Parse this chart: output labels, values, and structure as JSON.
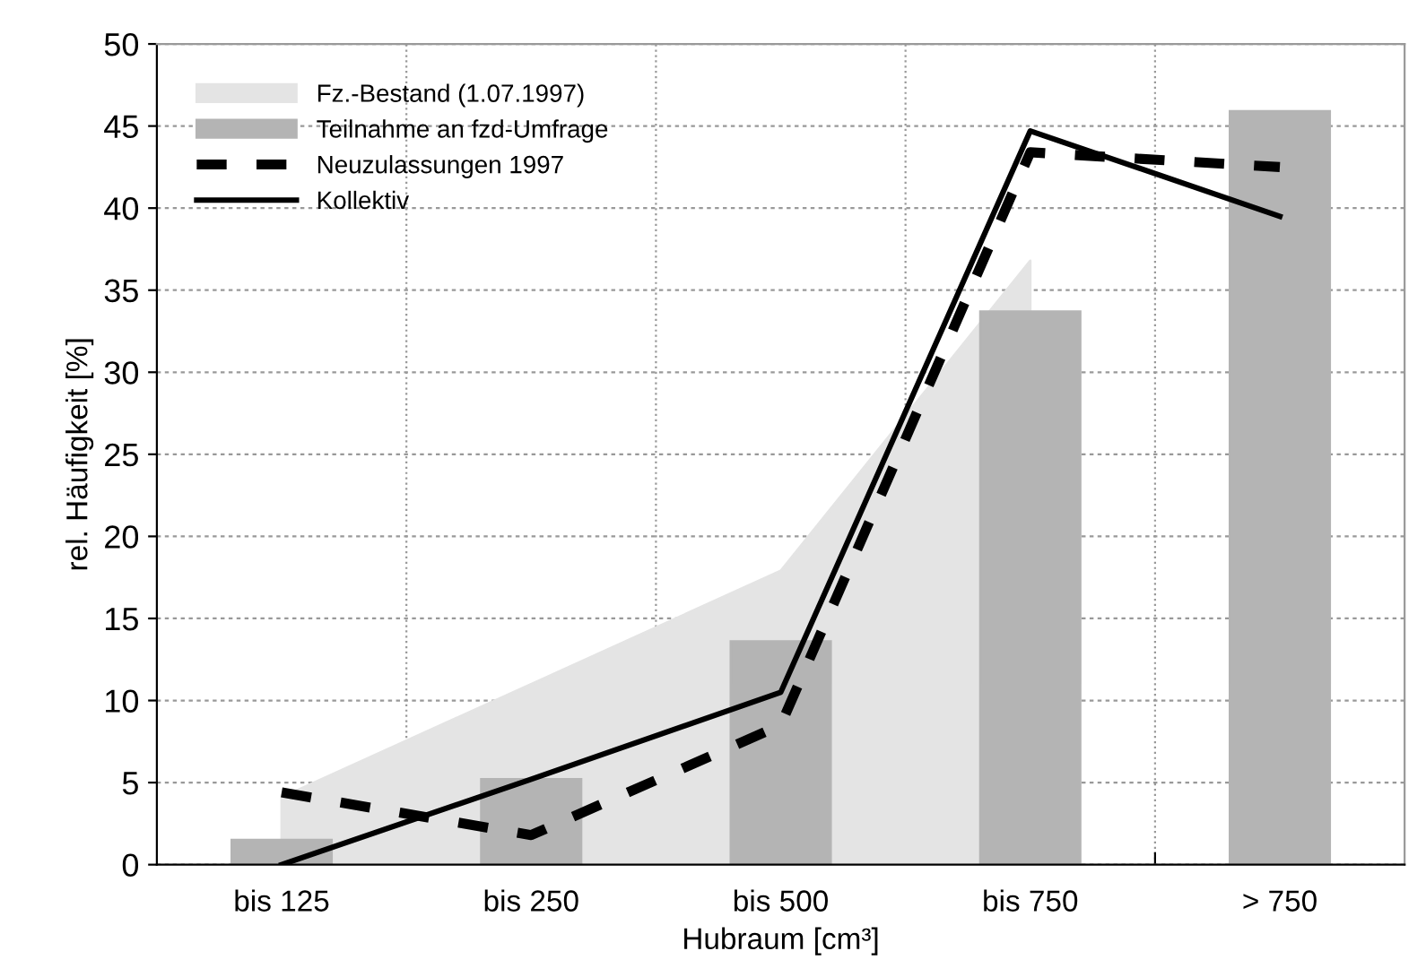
{
  "chart_data": {
    "type": "bar",
    "xlabel": "Hubraum [cm³]",
    "ylabel": "rel. Häufigkeit [%]",
    "categories": [
      "bis 125",
      "bis 250",
      "bis 500",
      "bis 750",
      "> 750"
    ],
    "series": [
      {
        "name": "Fz.-Bestand (1.07.1997)",
        "type": "area",
        "color": "#e4e4e4",
        "values": [
          4.1,
          11,
          17.9,
          36.8,
          null
        ]
      },
      {
        "name": "Teilnahme an fzd-Umfrage",
        "color": "#b4b4b4",
        "values": [
          1.5,
          5.2,
          13.6,
          33.7,
          45.9
        ]
      },
      {
        "name": "Neuzulassungen 1997",
        "type": "line",
        "line_style": "dashed",
        "color": "#000000",
        "values": [
          4.4,
          1.8,
          8.5,
          43.4,
          42.5
        ]
      },
      {
        "name": "Kollektiv",
        "type": "line",
        "line_style": "solid",
        "color": "#000000",
        "values": [
          0,
          5.2,
          10.5,
          44.7,
          39.5
        ]
      }
    ],
    "ylim": [
      0,
      50
    ],
    "yticks": [
      0,
      5,
      10,
      15,
      20,
      25,
      30,
      35,
      40,
      45,
      50
    ],
    "grid": true,
    "legend": "top left"
  }
}
